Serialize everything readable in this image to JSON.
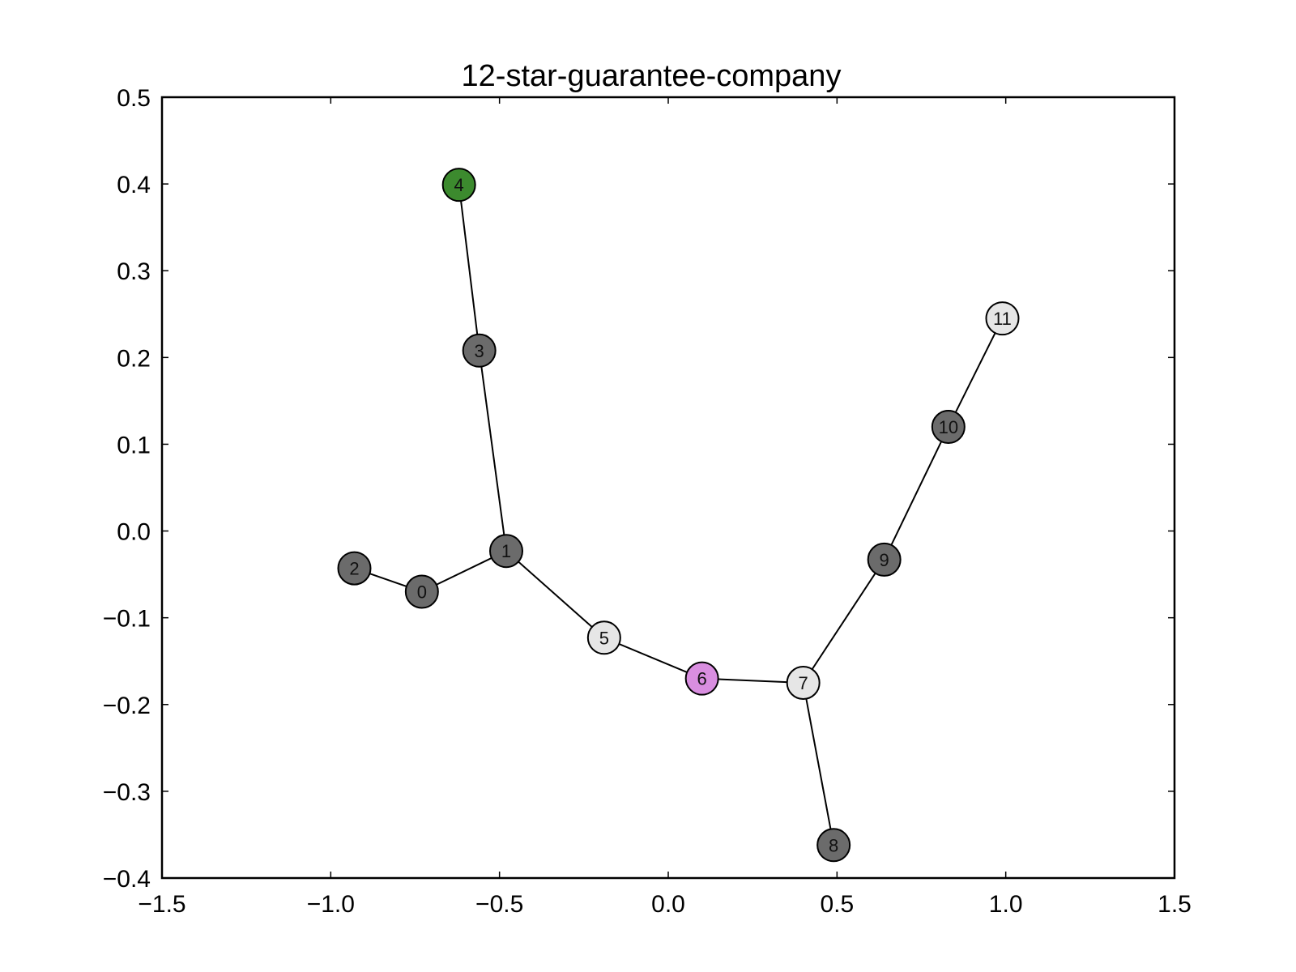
{
  "chart_data": {
    "type": "network-graph",
    "title": "12-star-guarantee-company",
    "xlabel": "",
    "ylabel": "",
    "xlim": [
      -1.5,
      1.5
    ],
    "ylim": [
      -0.4,
      0.5
    ],
    "xticks": [
      -1.5,
      -1.0,
      -0.5,
      0.0,
      0.5,
      1.0,
      1.5
    ],
    "xtick_labels": [
      "−1.5",
      "−1.0",
      "−0.5",
      "0.0",
      "0.5",
      "1.0",
      "1.5"
    ],
    "yticks": [
      -0.4,
      -0.3,
      -0.2,
      -0.1,
      0.0,
      0.1,
      0.2,
      0.3,
      0.4,
      0.5
    ],
    "ytick_labels": [
      "−0.4",
      "−0.3",
      "−0.2",
      "−0.1",
      "0.0",
      "0.1",
      "0.2",
      "0.3",
      "0.4",
      "0.5"
    ],
    "grid": false,
    "colors": {
      "dark": "#6b6b6b",
      "light": "#e6e6e6",
      "green": "#3c8a2e",
      "violet": "#d98ee0",
      "edge": "#000000"
    },
    "nodes": [
      {
        "id": "0",
        "x": -0.73,
        "y": -0.07,
        "color": "dark"
      },
      {
        "id": "1",
        "x": -0.48,
        "y": -0.023,
        "color": "dark"
      },
      {
        "id": "2",
        "x": -0.93,
        "y": -0.043,
        "color": "dark"
      },
      {
        "id": "3",
        "x": -0.56,
        "y": 0.208,
        "color": "dark"
      },
      {
        "id": "4",
        "x": -0.62,
        "y": 0.399,
        "color": "green"
      },
      {
        "id": "5",
        "x": -0.19,
        "y": -0.123,
        "color": "light"
      },
      {
        "id": "6",
        "x": 0.1,
        "y": -0.17,
        "color": "violet"
      },
      {
        "id": "7",
        "x": 0.4,
        "y": -0.175,
        "color": "light"
      },
      {
        "id": "8",
        "x": 0.49,
        "y": -0.362,
        "color": "dark"
      },
      {
        "id": "9",
        "x": 0.64,
        "y": -0.033,
        "color": "dark"
      },
      {
        "id": "10",
        "x": 0.83,
        "y": 0.12,
        "color": "dark"
      },
      {
        "id": "11",
        "x": 0.99,
        "y": 0.245,
        "color": "light"
      }
    ],
    "edges": [
      [
        "2",
        "0"
      ],
      [
        "0",
        "1"
      ],
      [
        "1",
        "3"
      ],
      [
        "3",
        "4"
      ],
      [
        "1",
        "5"
      ],
      [
        "5",
        "6"
      ],
      [
        "6",
        "7"
      ],
      [
        "7",
        "8"
      ],
      [
        "7",
        "9"
      ],
      [
        "9",
        "10"
      ],
      [
        "10",
        "11"
      ]
    ]
  }
}
